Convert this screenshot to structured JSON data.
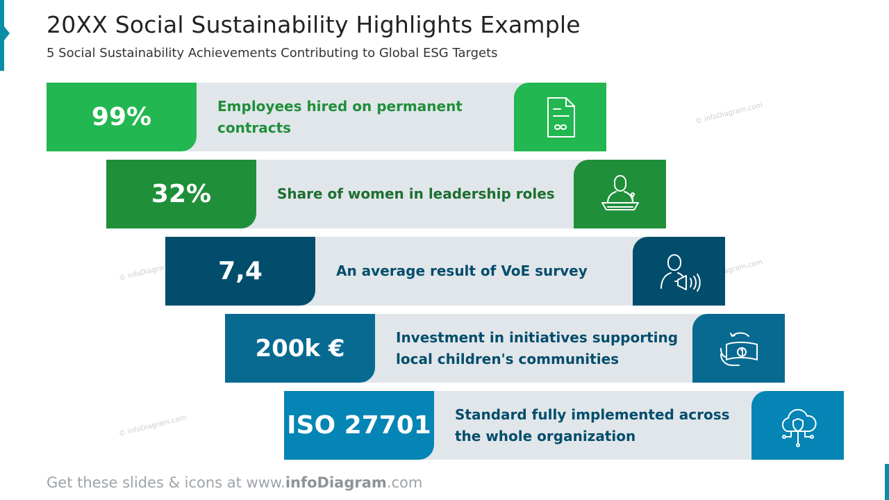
{
  "title": "20XX Social Sustainability Highlights Example",
  "subtitle": "5 Social Sustainability Achievements Contributing to Global ESG Targets",
  "watermark": "© infoDiagram.com",
  "colors": {
    "bar_background": "#e1e6ea",
    "green": "#22b750",
    "dark_green": "#1f8f3a",
    "navy": "#024d6c",
    "blue": "#086a91",
    "light_blue": "#0585b5"
  },
  "items": [
    {
      "value": "99%",
      "description": "Employees hired on permanent contracts",
      "icon": "contract-document-icon",
      "color": "#22b750",
      "text_color": "#1f8f3a"
    },
    {
      "value": "32%",
      "description": "Share of women in leadership roles",
      "icon": "speaker-podium-icon",
      "color": "#1f8f3a",
      "text_color": "#1c6f30"
    },
    {
      "value": "7,4",
      "description": "An average result of VoE survey",
      "icon": "person-megaphone-icon",
      "color": "#024d6c",
      "text_color": "#024d6c"
    },
    {
      "value": "200k €",
      "description": "Investment in initiatives supporting local children's communities",
      "icon": "money-transfer-icon",
      "color": "#086a91",
      "text_color": "#024d6c"
    },
    {
      "value": "ISO 27701",
      "description": "Standard fully implemented across the whole organization",
      "icon": "cloud-security-icon",
      "color": "#0585b5",
      "text_color": "#024d6c"
    }
  ],
  "footer": {
    "prefix": "Get these slides & icons at www.",
    "brand": "infoDiagram",
    "suffix": ".com"
  }
}
